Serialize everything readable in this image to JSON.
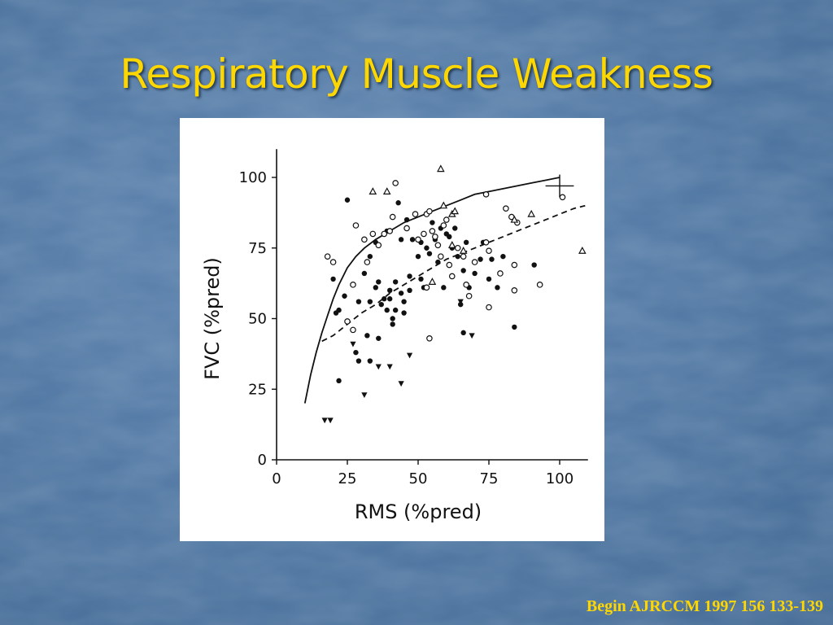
{
  "slide": {
    "title": "Respiratory Muscle Weakness",
    "citation": "Begin AJRCCM 1997 156 133-139"
  },
  "colors": {
    "title": "#ffd700",
    "citation": "#ffd700",
    "background": "#4f77a3",
    "plot_background": "#ffffff",
    "ink": "#111111"
  },
  "chart_data": {
    "type": "scatter",
    "title": "",
    "xlabel": "RMS (%pred)",
    "ylabel": "FVC (%pred)",
    "xlim": [
      0,
      110
    ],
    "ylim": [
      0,
      110
    ],
    "x_ticks": [
      0,
      25,
      50,
      75,
      100
    ],
    "y_ticks": [
      0,
      25,
      50,
      75,
      100
    ],
    "grid": false,
    "legend": "none",
    "series": [
      {
        "marker": "filled-circle",
        "points": [
          [
            25,
            92
          ],
          [
            20,
            64
          ],
          [
            21,
            52
          ],
          [
            22,
            53
          ],
          [
            22,
            28
          ],
          [
            24,
            58
          ],
          [
            28,
            38
          ],
          [
            29,
            56
          ],
          [
            31,
            66
          ],
          [
            32,
            44
          ],
          [
            33,
            56
          ],
          [
            33,
            72
          ],
          [
            35,
            77
          ],
          [
            35,
            61
          ],
          [
            36,
            63
          ],
          [
            36,
            43
          ],
          [
            37,
            55
          ],
          [
            38,
            57
          ],
          [
            39,
            53
          ],
          [
            39,
            81
          ],
          [
            40,
            60
          ],
          [
            40,
            57
          ],
          [
            41,
            48
          ],
          [
            41,
            50
          ],
          [
            42,
            53
          ],
          [
            42,
            63
          ],
          [
            43,
            91
          ],
          [
            44,
            59
          ],
          [
            44,
            78
          ],
          [
            45,
            52
          ],
          [
            45,
            56
          ],
          [
            46,
            82
          ],
          [
            46,
            85
          ],
          [
            47,
            60
          ],
          [
            47,
            65
          ],
          [
            48,
            78
          ],
          [
            50,
            72
          ],
          [
            51,
            64
          ],
          [
            51,
            77
          ],
          [
            52,
            61
          ],
          [
            53,
            75
          ],
          [
            54,
            73
          ],
          [
            55,
            84
          ],
          [
            56,
            78
          ],
          [
            57,
            70
          ],
          [
            58,
            82
          ],
          [
            59,
            61
          ],
          [
            60,
            80
          ],
          [
            61,
            79
          ],
          [
            62,
            75
          ],
          [
            63,
            82
          ],
          [
            64,
            72
          ],
          [
            65,
            55
          ],
          [
            66,
            67
          ],
          [
            66,
            45
          ],
          [
            67,
            77
          ],
          [
            68,
            61
          ],
          [
            70,
            66
          ],
          [
            72,
            71
          ],
          [
            73,
            77
          ],
          [
            75,
            64
          ],
          [
            76,
            71
          ],
          [
            78,
            61
          ],
          [
            80,
            72
          ],
          [
            84,
            47
          ],
          [
            91,
            69
          ],
          [
            29,
            35
          ],
          [
            33,
            35
          ]
        ]
      },
      {
        "marker": "open-circle",
        "points": [
          [
            18,
            72
          ],
          [
            20,
            70
          ],
          [
            27,
            62
          ],
          [
            28,
            83
          ],
          [
            31,
            78
          ],
          [
            32,
            70
          ],
          [
            34,
            80
          ],
          [
            36,
            76
          ],
          [
            38,
            80
          ],
          [
            40,
            81
          ],
          [
            41,
            86
          ],
          [
            42,
            98
          ],
          [
            46,
            82
          ],
          [
            49,
            87
          ],
          [
            50,
            78
          ],
          [
            52,
            80
          ],
          [
            53,
            87
          ],
          [
            53,
            61
          ],
          [
            54,
            43
          ],
          [
            54,
            88
          ],
          [
            55,
            81
          ],
          [
            56,
            79
          ],
          [
            57,
            76
          ],
          [
            58,
            72
          ],
          [
            59,
            83
          ],
          [
            60,
            85
          ],
          [
            61,
            69
          ],
          [
            62,
            65
          ],
          [
            64,
            75
          ],
          [
            66,
            72
          ],
          [
            67,
            62
          ],
          [
            68,
            58
          ],
          [
            70,
            70
          ],
          [
            74,
            77
          ],
          [
            74,
            94
          ],
          [
            75,
            74
          ],
          [
            75,
            54
          ],
          [
            79,
            66
          ],
          [
            81,
            89
          ],
          [
            83,
            86
          ],
          [
            84,
            69
          ],
          [
            84,
            60
          ],
          [
            85,
            84
          ],
          [
            93,
            62
          ],
          [
            101,
            93
          ],
          [
            25,
            49
          ],
          [
            27,
            46
          ]
        ]
      },
      {
        "marker": "open-triangle",
        "points": [
          [
            34,
            95
          ],
          [
            39,
            95
          ],
          [
            58,
            103
          ],
          [
            59,
            90
          ],
          [
            62,
            87
          ],
          [
            63,
            88
          ],
          [
            84,
            85
          ],
          [
            90,
            87
          ],
          [
            108,
            74
          ],
          [
            55,
            63
          ],
          [
            62,
            76
          ],
          [
            66,
            74
          ]
        ]
      },
      {
        "marker": "filled-triangle-down",
        "points": [
          [
            17,
            14
          ],
          [
            19,
            14
          ],
          [
            27,
            41
          ],
          [
            31,
            23
          ],
          [
            36,
            33
          ],
          [
            40,
            33
          ],
          [
            44,
            27
          ],
          [
            47,
            37
          ],
          [
            65,
            56
          ],
          [
            69,
            44
          ]
        ]
      }
    ],
    "curves": [
      {
        "style": "solid",
        "x": [
          10,
          12,
          14,
          16,
          18,
          20,
          22,
          25,
          28,
          31,
          35,
          40,
          45,
          50,
          55,
          60,
          65,
          70,
          75,
          80,
          85,
          90,
          95,
          100
        ],
        "y": [
          20,
          30,
          38,
          45,
          51,
          57,
          62,
          68,
          72,
          75,
          78,
          81,
          84,
          86,
          88,
          90,
          92,
          94,
          95,
          96,
          97,
          98,
          99,
          100
        ]
      },
      {
        "style": "dashed",
        "x": [
          16,
          20,
          25,
          30,
          35,
          40,
          45,
          50,
          55,
          60,
          65,
          70,
          75,
          80,
          85,
          90,
          95,
          100,
          105,
          109
        ],
        "y": [
          42,
          44,
          48,
          52,
          55,
          59,
          62,
          65,
          68,
          71,
          73,
          75,
          77,
          79,
          81,
          83,
          85,
          87,
          89,
          90
        ]
      }
    ],
    "error_marker": {
      "x": 100,
      "y": 97,
      "x_err": 5,
      "y_err": 4
    }
  }
}
